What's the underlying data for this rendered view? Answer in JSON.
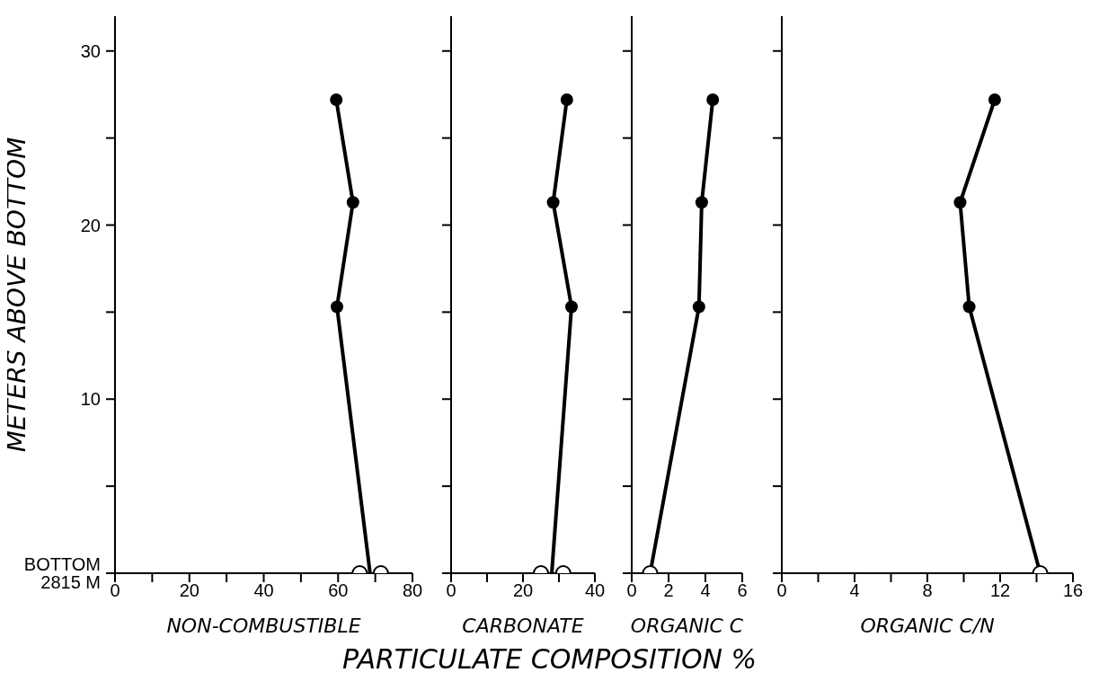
{
  "chart_data": [
    {
      "type": "line",
      "ylabel": "METERS ABOVE BOTTOM",
      "xlabel": "NON-COMBUSTIBLE",
      "annotations": [
        "PARTICULATE COMPOSITION %"
      ],
      "xlim": [
        0,
        80
      ],
      "xticks": [
        0,
        {
          "value": 10,
          "label": null
        },
        20,
        {
          "value": 30,
          "label": null
        },
        40,
        {
          "value": 50,
          "label": null
        },
        60,
        {
          "value": 70,
          "label": null
        },
        80
      ],
      "ylim": [
        0,
        32
      ],
      "yticks": [
        {
          "value": 0,
          "label": "BOTTOM\n2815 M"
        },
        {
          "value": 5,
          "label": null
        },
        10,
        {
          "value": 15,
          "label": null
        },
        20,
        {
          "value": 25,
          "label": null
        },
        30
      ],
      "series": [
        {
          "type": "line",
          "marker": "circle",
          "color": "#000000",
          "x": [
            59.5,
            64,
            59.7
          ],
          "values": [
            27.2,
            21.3,
            15.3
          ]
        },
        {
          "type": "line",
          "marker": "none",
          "color": "#000000",
          "x": [
            59.7,
            68.6
          ],
          "values": [
            15.3,
            0
          ]
        },
        {
          "type": "scatter",
          "marker": "circle",
          "color": "#000000",
          "x": [
            65.8,
            71.5
          ],
          "values": [
            0,
            0
          ]
        }
      ]
    },
    {
      "type": "line",
      "xlabel": "CARBONATE",
      "tick_labels": "x",
      "xlim": [
        0,
        40
      ],
      "xticks": [
        0,
        {
          "value": 10,
          "label": null
        },
        20,
        {
          "value": 30,
          "label": null
        },
        40
      ],
      "ylim": [
        0,
        32
      ],
      "yticks": [
        {
          "value": 0,
          "label": null
        },
        {
          "value": 5,
          "label": null
        },
        {
          "value": 10,
          "label": null
        },
        {
          "value": 15,
          "label": null
        },
        {
          "value": 20,
          "label": null
        },
        {
          "value": 25,
          "label": null
        },
        {
          "value": 30,
          "label": null
        }
      ],
      "series": [
        {
          "type": "line",
          "marker": "circle",
          "color": "#000000",
          "x": [
            32.2,
            28.4,
            33.5
          ],
          "values": [
            27.2,
            21.3,
            15.3
          ]
        },
        {
          "type": "line",
          "marker": "none",
          "color": "#000000",
          "x": [
            33.5,
            28
          ],
          "values": [
            15.3,
            0
          ]
        },
        {
          "type": "scatter",
          "marker": "circle",
          "color": "#000000",
          "x": [
            25,
            31.2
          ],
          "values": [
            0,
            0
          ]
        }
      ]
    },
    {
      "type": "line",
      "xlabel": "ORGANIC C",
      "tick_labels": "x",
      "xlim": [
        0,
        6
      ],
      "xticks": [
        0,
        2,
        4,
        6
      ],
      "ylim": [
        0,
        32
      ],
      "yticks": [
        {
          "value": 0,
          "label": null
        },
        {
          "value": 5,
          "label": null
        },
        {
          "value": 10,
          "label": null
        },
        {
          "value": 15,
          "label": null
        },
        {
          "value": 20,
          "label": null
        },
        {
          "value": 25,
          "label": null
        },
        {
          "value": 30,
          "label": null
        }
      ],
      "series": [
        {
          "type": "line",
          "marker": "circle",
          "color": "#000000",
          "x": [
            4.4,
            3.8,
            3.65
          ],
          "values": [
            27.2,
            21.3,
            15.3
          ]
        },
        {
          "type": "line",
          "marker": "none",
          "color": "#000000",
          "x": [
            3.65,
            1.0
          ],
          "values": [
            15.3,
            0
          ]
        },
        {
          "type": "scatter",
          "marker": "circle",
          "color": "#000000",
          "x": [
            1.0
          ],
          "values": [
            0
          ]
        }
      ]
    },
    {
      "type": "line",
      "xlabel": "ORGANIC C/N",
      "tick_labels": "x",
      "xlim": [
        0,
        16
      ],
      "xticks": [
        0,
        {
          "value": 2,
          "label": null
        },
        4,
        {
          "value": 6,
          "label": null
        },
        8,
        {
          "value": 10,
          "label": null
        },
        12,
        {
          "value": 14,
          "label": null
        },
        16
      ],
      "ylim": [
        0,
        32
      ],
      "yticks": [
        {
          "value": 0,
          "label": null
        },
        {
          "value": 5,
          "label": null
        },
        {
          "value": 10,
          "label": null
        },
        {
          "value": 15,
          "label": null
        },
        {
          "value": 20,
          "label": null
        },
        {
          "value": 25,
          "label": null
        },
        {
          "value": 30,
          "label": null
        }
      ],
      "series": [
        {
          "type": "line",
          "marker": "circle",
          "color": "#000000",
          "x": [
            11.7,
            9.8,
            10.3
          ],
          "values": [
            27.2,
            21.3,
            15.3
          ]
        },
        {
          "type": "line",
          "marker": "none",
          "color": "#000000",
          "x": [
            10.3,
            14.2
          ],
          "values": [
            15.3,
            0
          ]
        },
        {
          "type": "scatter",
          "marker": "circle",
          "color": "#000000",
          "x": [
            14.2
          ],
          "values": [
            0
          ]
        }
      ]
    }
  ]
}
